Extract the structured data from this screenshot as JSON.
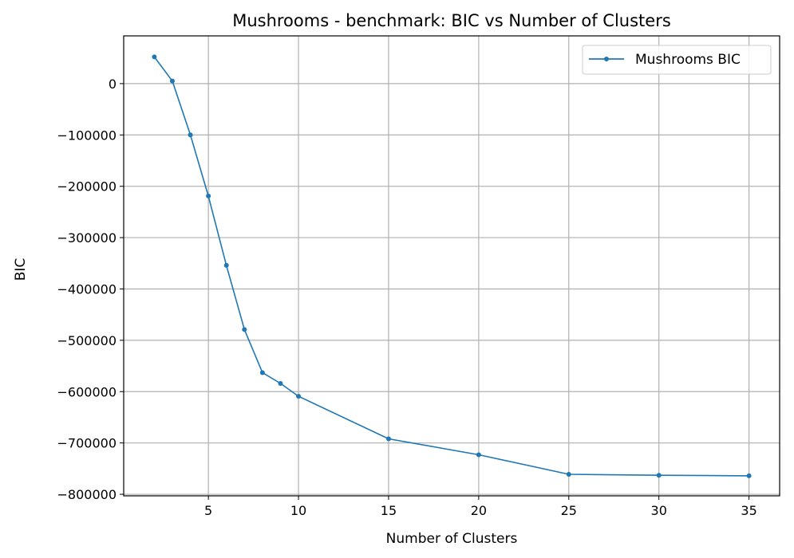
{
  "chart_data": {
    "type": "line",
    "title": "Mushrooms - benchmark: BIC vs Number of Clusters",
    "xlabel": "Number of Clusters",
    "ylabel": "BIC",
    "xlim": [
      0.3,
      36.7
    ],
    "ylim": [
      -803000,
      93000
    ],
    "xticks": [
      5,
      10,
      15,
      20,
      25,
      30,
      35
    ],
    "yticks": [
      0,
      -100000,
      -200000,
      -300000,
      -400000,
      -500000,
      -600000,
      -700000,
      -800000
    ],
    "grid": true,
    "legend_position": "top-right",
    "series": [
      {
        "name": "Mushrooms BIC",
        "color": "#1f77b4",
        "marker": "circle",
        "x": [
          2,
          3,
          4,
          5,
          6,
          7,
          8,
          9,
          10,
          15,
          20,
          25,
          30,
          35
        ],
        "y": [
          52000,
          5000,
          -100000,
          -219000,
          -354000,
          -479000,
          -563000,
          -584000,
          -609000,
          -692000,
          -723000,
          -761000,
          -763000,
          -764000
        ]
      }
    ]
  }
}
